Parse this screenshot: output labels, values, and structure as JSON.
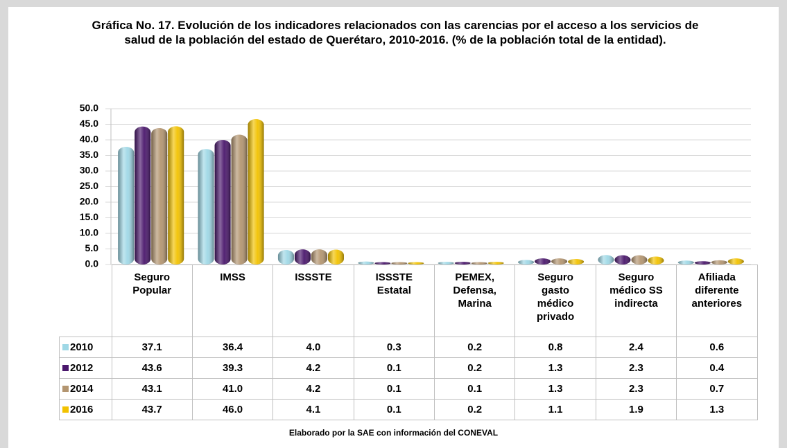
{
  "chart_data": {
    "type": "bar",
    "title": "Gráfica No. 17. Evolución de los indicadores relacionados con las carencias por el acceso a los servicios de salud de la población del estado de Querétaro, 2010-2016. (% de la población total de la entidad).",
    "categories": [
      "Seguro Popular",
      "IMSS",
      "ISSSTE",
      "ISSSTE Estatal",
      "PEMEX, Defensa, Marina",
      "Seguro gasto médico privado",
      "Seguro médico SS indirecta",
      "Afiliada diferente anteriores"
    ],
    "series": [
      {
        "name": "2010",
        "color": "#9fd8e6",
        "values": [
          37.1,
          36.4,
          4.0,
          0.3,
          0.2,
          0.8,
          2.4,
          0.6
        ],
        "value_labels": [
          "37.1",
          "36.4",
          "4.0",
          "0.3",
          "0.2",
          "0.8",
          "2.4",
          "0.6"
        ]
      },
      {
        "name": "2012",
        "color": "#4a176c",
        "values": [
          43.6,
          39.3,
          4.2,
          0.1,
          0.2,
          1.3,
          2.3,
          0.4
        ],
        "value_labels": [
          "43.6",
          "39.3",
          "4.2",
          "0.1",
          "0.2",
          "1.3",
          "2.3",
          "0.4"
        ]
      },
      {
        "name": "2014",
        "color": "#b39570",
        "values": [
          43.1,
          41.0,
          4.2,
          0.1,
          0.1,
          1.3,
          2.3,
          0.7
        ],
        "value_labels": [
          "43.1",
          "41.0",
          "4.2",
          "0.1",
          "0.1",
          "1.3",
          "2.3",
          "0.7"
        ]
      },
      {
        "name": "2016",
        "color": "#f2c200",
        "values": [
          43.7,
          46.0,
          4.1,
          0.1,
          0.2,
          1.1,
          1.9,
          1.3
        ],
        "value_labels": [
          "43.7",
          "46.0",
          "4.1",
          "0.1",
          "0.2",
          "1.1",
          "1.9",
          "1.3"
        ]
      }
    ],
    "ylim": [
      0,
      50
    ],
    "yticks": [
      {
        "value": 0,
        "label": "0.0"
      },
      {
        "value": 5,
        "label": "5.0"
      },
      {
        "value": 10,
        "label": "10.0"
      },
      {
        "value": 15,
        "label": "15.0"
      },
      {
        "value": 20,
        "label": "20.0"
      },
      {
        "value": 25,
        "label": "25.0"
      },
      {
        "value": 30,
        "label": "30.0"
      },
      {
        "value": 35,
        "label": "35.0"
      },
      {
        "value": 40,
        "label": "40.0"
      },
      {
        "value": 45,
        "label": "45.0"
      },
      {
        "value": 50,
        "label": "50.0"
      }
    ],
    "grid": true,
    "source": "Elaborado por la SAE con información del CONEVAL"
  }
}
